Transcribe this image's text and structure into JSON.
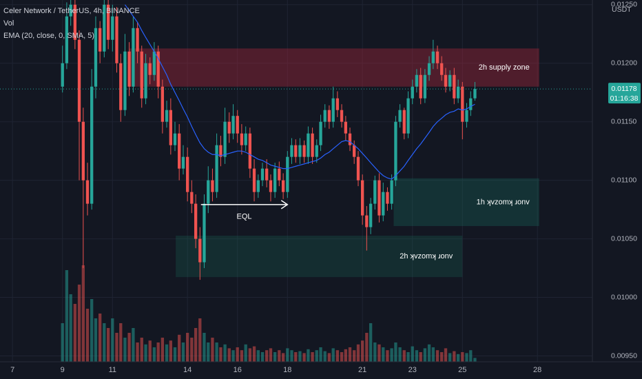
{
  "chart_data": {
    "type": "candlestick",
    "title": "Celer Network / TetherUS, 4h, BINANCE",
    "indicators": [
      "Vol",
      "EMA (20, close, 0, SMA, 5)"
    ],
    "y_unit": "USDT",
    "up_color": "#26a69a",
    "down_color": "#ef5350",
    "grid": true,
    "xlim": [
      6.5,
      30.2
    ],
    "xticks": [
      7,
      9,
      11,
      14,
      16,
      18,
      21,
      23,
      25,
      28
    ],
    "ylim": [
      0.00945,
      0.01254
    ],
    "yticks": [
      {
        "value": 0.0095,
        "label": "0.00950"
      },
      {
        "value": 0.01,
        "label": "0.01000"
      },
      {
        "value": 0.0105,
        "label": "0.01050"
      },
      {
        "value": 0.011,
        "label": "0.01100"
      },
      {
        "value": 0.0115,
        "label": "0.01150"
      },
      {
        "value": 0.012,
        "label": "0.01200"
      },
      {
        "value": 0.0125,
        "label": "0.01250"
      }
    ],
    "y2lim": [
      0,
      375
    ],
    "x": [
      9,
      9.17,
      9.33,
      9.5,
      9.67,
      9.83,
      10,
      10.17,
      10.33,
      10.5,
      10.67,
      10.83,
      11,
      11.17,
      11.33,
      11.5,
      11.67,
      11.83,
      12,
      12.17,
      12.33,
      12.5,
      12.67,
      12.83,
      13,
      13.17,
      13.33,
      13.5,
      13.67,
      13.83,
      14,
      14.17,
      14.33,
      14.5,
      14.67,
      14.83,
      15,
      15.17,
      15.33,
      15.5,
      15.67,
      15.83,
      16,
      16.17,
      16.33,
      16.5,
      16.67,
      16.83,
      17,
      17.17,
      17.33,
      17.5,
      17.67,
      17.83,
      18,
      18.17,
      18.33,
      18.5,
      18.67,
      18.83,
      19,
      19.17,
      19.33,
      19.5,
      19.67,
      19.83,
      20,
      20.17,
      20.33,
      20.5,
      20.67,
      20.83,
      21,
      21.17,
      21.33,
      21.5,
      21.67,
      21.83,
      22,
      22.17,
      22.33,
      22.5,
      22.67,
      22.83,
      23,
      23.17,
      23.33,
      23.5,
      23.67,
      23.83,
      24,
      24.17,
      24.33,
      24.5,
      24.67,
      24.83,
      25,
      25.17,
      25.33,
      25.5
    ],
    "open": [
      0.0118,
      0.012,
      0.0124,
      0.0125,
      0.0122,
      0.0115,
      0.011,
      0.0108,
      0.0118,
      0.0123,
      0.0121,
      0.0125,
      0.0122,
      0.0124,
      0.012,
      0.0116,
      0.0121,
      0.0118,
      0.0123,
      0.0121,
      0.0117,
      0.012,
      0.0119,
      0.0121,
      0.0118,
      0.0115,
      0.0116,
      0.0113,
      0.0114,
      0.0111,
      0.0112,
      0.0109,
      0.0108,
      0.0105,
      0.0103,
      0.0108,
      0.011,
      0.0109,
      0.0113,
      0.0112,
      0.0115,
      0.0114,
      0.01155,
      0.0114,
      0.0113,
      0.0114,
      0.0111,
      0.0109,
      0.011,
      0.0111,
      0.011,
      0.0109,
      0.0111,
      0.011,
      0.0109,
      0.0112,
      0.0113,
      0.0112,
      0.0113,
      0.0112,
      0.0114,
      0.0112,
      0.0113,
      0.0115,
      0.0116,
      0.0115,
      0.0117,
      0.0116,
      0.0115,
      0.0114,
      0.0113,
      0.0112,
      0.011,
      0.0107,
      0.0106,
      0.0108,
      0.011,
      0.0107,
      0.0109,
      0.0108,
      0.011,
      0.0115,
      0.0116,
      0.0114,
      0.0117,
      0.0118,
      0.0119,
      0.0117,
      0.0119,
      0.012,
      0.0121,
      0.012,
      0.0119,
      0.0118,
      0.0119,
      0.0117,
      0.0118,
      0.0115,
      0.0116,
      0.0117
    ],
    "high": [
      0.01215,
      0.01252,
      0.01254,
      0.01254,
      0.01228,
      0.01162,
      0.01115,
      0.01195,
      0.0124,
      0.01236,
      0.01254,
      0.01254,
      0.0125,
      0.01248,
      0.01208,
      0.01225,
      0.01218,
      0.0124,
      0.01235,
      0.01215,
      0.01208,
      0.01205,
      0.01218,
      0.01215,
      0.01186,
      0.01168,
      0.0117,
      0.0115,
      0.01148,
      0.0113,
      0.01128,
      0.011,
      0.01088,
      0.0106,
      0.01088,
      0.01112,
      0.0111,
      0.0114,
      0.01138,
      0.01162,
      0.01158,
      0.01165,
      0.0116,
      0.01148,
      0.01146,
      0.01145,
      0.01118,
      0.01105,
      0.01115,
      0.01118,
      0.01105,
      0.01115,
      0.01116,
      0.01106,
      0.01125,
      0.01136,
      0.01135,
      0.01136,
      0.01134,
      0.01146,
      0.01145,
      0.01135,
      0.01156,
      0.01165,
      0.01164,
      0.0118,
      0.01176,
      0.01165,
      0.01155,
      0.01145,
      0.01134,
      0.01125,
      0.01105,
      0.01078,
      0.01085,
      0.01104,
      0.01106,
      0.01098,
      0.01094,
      0.01105,
      0.01155,
      0.01165,
      0.01162,
      0.01176,
      0.01186,
      0.01195,
      0.01196,
      0.01195,
      0.01206,
      0.0122,
      0.01215,
      0.01206,
      0.01196,
      0.01194,
      0.01196,
      0.01186,
      0.01184,
      0.01166,
      0.01176,
      0.01184
    ],
    "low": [
      0.01175,
      0.01195,
      0.01232,
      0.01212,
      0.011,
      0.01025,
      0.0107,
      0.01075,
      0.0117,
      0.012,
      0.01205,
      0.01212,
      0.0121,
      0.01192,
      0.0115,
      0.01155,
      0.01172,
      0.01175,
      0.012,
      0.01162,
      0.01165,
      0.01182,
      0.01185,
      0.0117,
      0.0114,
      0.01145,
      0.01122,
      0.01125,
      0.011,
      0.01105,
      0.01082,
      0.01072,
      0.01042,
      0.01015,
      0.01025,
      0.01072,
      0.01082,
      0.01085,
      0.01112,
      0.01114,
      0.01132,
      0.01135,
      0.01132,
      0.01122,
      0.01125,
      0.01102,
      0.01082,
      0.01085,
      0.01095,
      0.01094,
      0.01082,
      0.01085,
      0.01095,
      0.01084,
      0.01085,
      0.01114,
      0.01115,
      0.01114,
      0.01115,
      0.01114,
      0.01114,
      0.01115,
      0.01125,
      0.01145,
      0.01144,
      0.01145,
      0.01154,
      0.01145,
      0.01134,
      0.01125,
      0.01114,
      0.01095,
      0.01062,
      0.0104,
      0.01054,
      0.01075,
      0.01064,
      0.01065,
      0.01074,
      0.01075,
      0.01095,
      0.01145,
      0.01135,
      0.01136,
      0.01165,
      0.01175,
      0.01165,
      0.01166,
      0.01185,
      0.01195,
      0.01195,
      0.01185,
      0.01175,
      0.01176,
      0.01165,
      0.01166,
      0.01135,
      0.01145,
      0.01155,
      0.01168
    ],
    "close": [
      0.012,
      0.0124,
      0.0125,
      0.0122,
      0.0115,
      0.011,
      0.0108,
      0.0118,
      0.0123,
      0.0121,
      0.0125,
      0.0122,
      0.0124,
      0.012,
      0.0116,
      0.0121,
      0.0118,
      0.0123,
      0.0121,
      0.0117,
      0.012,
      0.0119,
      0.0121,
      0.0118,
      0.0115,
      0.0116,
      0.0113,
      0.0114,
      0.0111,
      0.0112,
      0.0109,
      0.0108,
      0.0105,
      0.0103,
      0.0108,
      0.011,
      0.0109,
      0.0113,
      0.0112,
      0.0115,
      0.0114,
      0.01155,
      0.0114,
      0.0113,
      0.0114,
      0.0111,
      0.0109,
      0.011,
      0.0111,
      0.011,
      0.0109,
      0.0111,
      0.011,
      0.0109,
      0.0112,
      0.0113,
      0.0112,
      0.0113,
      0.0112,
      0.0114,
      0.0112,
      0.0113,
      0.0115,
      0.0116,
      0.0115,
      0.0117,
      0.0116,
      0.0115,
      0.0114,
      0.0113,
      0.0112,
      0.011,
      0.0107,
      0.0106,
      0.0108,
      0.011,
      0.0107,
      0.0109,
      0.0108,
      0.011,
      0.0115,
      0.0116,
      0.0114,
      0.0117,
      0.0118,
      0.0119,
      0.0117,
      0.0119,
      0.012,
      0.0121,
      0.012,
      0.0119,
      0.0118,
      0.0119,
      0.0117,
      0.0118,
      0.0115,
      0.0116,
      0.0117,
      0.01178
    ],
    "volume": [
      40,
      95,
      70,
      60,
      80,
      100,
      55,
      65,
      45,
      50,
      40,
      35,
      45,
      30,
      40,
      25,
      30,
      35,
      20,
      25,
      18,
      22,
      15,
      20,
      25,
      18,
      22,
      15,
      28,
      20,
      30,
      25,
      35,
      45,
      30,
      20,
      25,
      20,
      15,
      18,
      14,
      12,
      15,
      12,
      18,
      14,
      16,
      12,
      10,
      12,
      14,
      10,
      12,
      9,
      14,
      12,
      10,
      11,
      9,
      13,
      10,
      12,
      15,
      11,
      9,
      14,
      12,
      10,
      13,
      15,
      12,
      18,
      22,
      30,
      40,
      20,
      18,
      15,
      12,
      14,
      20,
      15,
      12,
      10,
      16,
      12,
      10,
      14,
      18,
      15,
      12,
      10,
      14,
      9,
      11,
      8,
      10,
      9,
      12,
      4
    ],
    "ema": {
      "name": "EMA (20, close, 0, SMA, 5)",
      "color": "#2962ff",
      "values": [
        null,
        null,
        null,
        null,
        null,
        null,
        null,
        null,
        null,
        null,
        null,
        null,
        null,
        null,
        null,
        0.0125,
        0.01245,
        0.0124,
        0.01235,
        0.01228,
        0.01222,
        0.01216,
        0.0121,
        0.01204,
        0.01197,
        0.0119,
        0.01182,
        0.01175,
        0.01168,
        0.01161,
        0.01154,
        0.01146,
        0.01139,
        0.01132,
        0.01127,
        0.01124,
        0.01122,
        0.01122,
        0.01121,
        0.01122,
        0.01123,
        0.01124,
        0.01125,
        0.01125,
        0.01124,
        0.01122,
        0.0112,
        0.01118,
        0.01117,
        0.01115,
        0.01113,
        0.01112,
        0.01111,
        0.0111,
        0.0111,
        0.01111,
        0.01112,
        0.01113,
        0.01114,
        0.01115,
        0.01116,
        0.01117,
        0.01119,
        0.01122,
        0.01124,
        0.01127,
        0.0113,
        0.01133,
        0.01134,
        0.01133,
        0.0113,
        0.01127,
        0.01123,
        0.01119,
        0.01115,
        0.01111,
        0.01107,
        0.01104,
        0.01102,
        0.01101,
        0.01104,
        0.01108,
        0.01112,
        0.01117,
        0.01122,
        0.01127,
        0.01131,
        0.01136,
        0.01141,
        0.01146,
        0.0115,
        0.01153,
        0.01156,
        0.01158,
        0.01159,
        0.01161,
        0.0116,
        0.01161,
        0.01163,
        0.01165
      ]
    },
    "zones": [
      {
        "label": "2h supply zone",
        "x": [
          11.68,
          28.07
        ],
        "y": [
          0.0118,
          0.012126
        ],
        "color": "rgba(178,40,60,0.38)"
      },
      {
        "label": "1h ʞvzomʞ ɹonv",
        "x": [
          22.25,
          28.07
        ],
        "y": [
          0.010609,
          0.011017
        ],
        "color": "rgba(24,110,92,0.32)"
      },
      {
        "label": "2h ʞvzomʞ ɹonv",
        "x": [
          13.53,
          25.0
        ],
        "y": [
          0.010173,
          0.010527
        ],
        "color": "rgba(24,110,92,0.25)"
      }
    ],
    "annotation": {
      "label": "EQL",
      "x": [
        14.54,
        18.0
      ],
      "y": 0.010793
    },
    "last_price": 0.01178,
    "countdown": "01:16:38"
  }
}
